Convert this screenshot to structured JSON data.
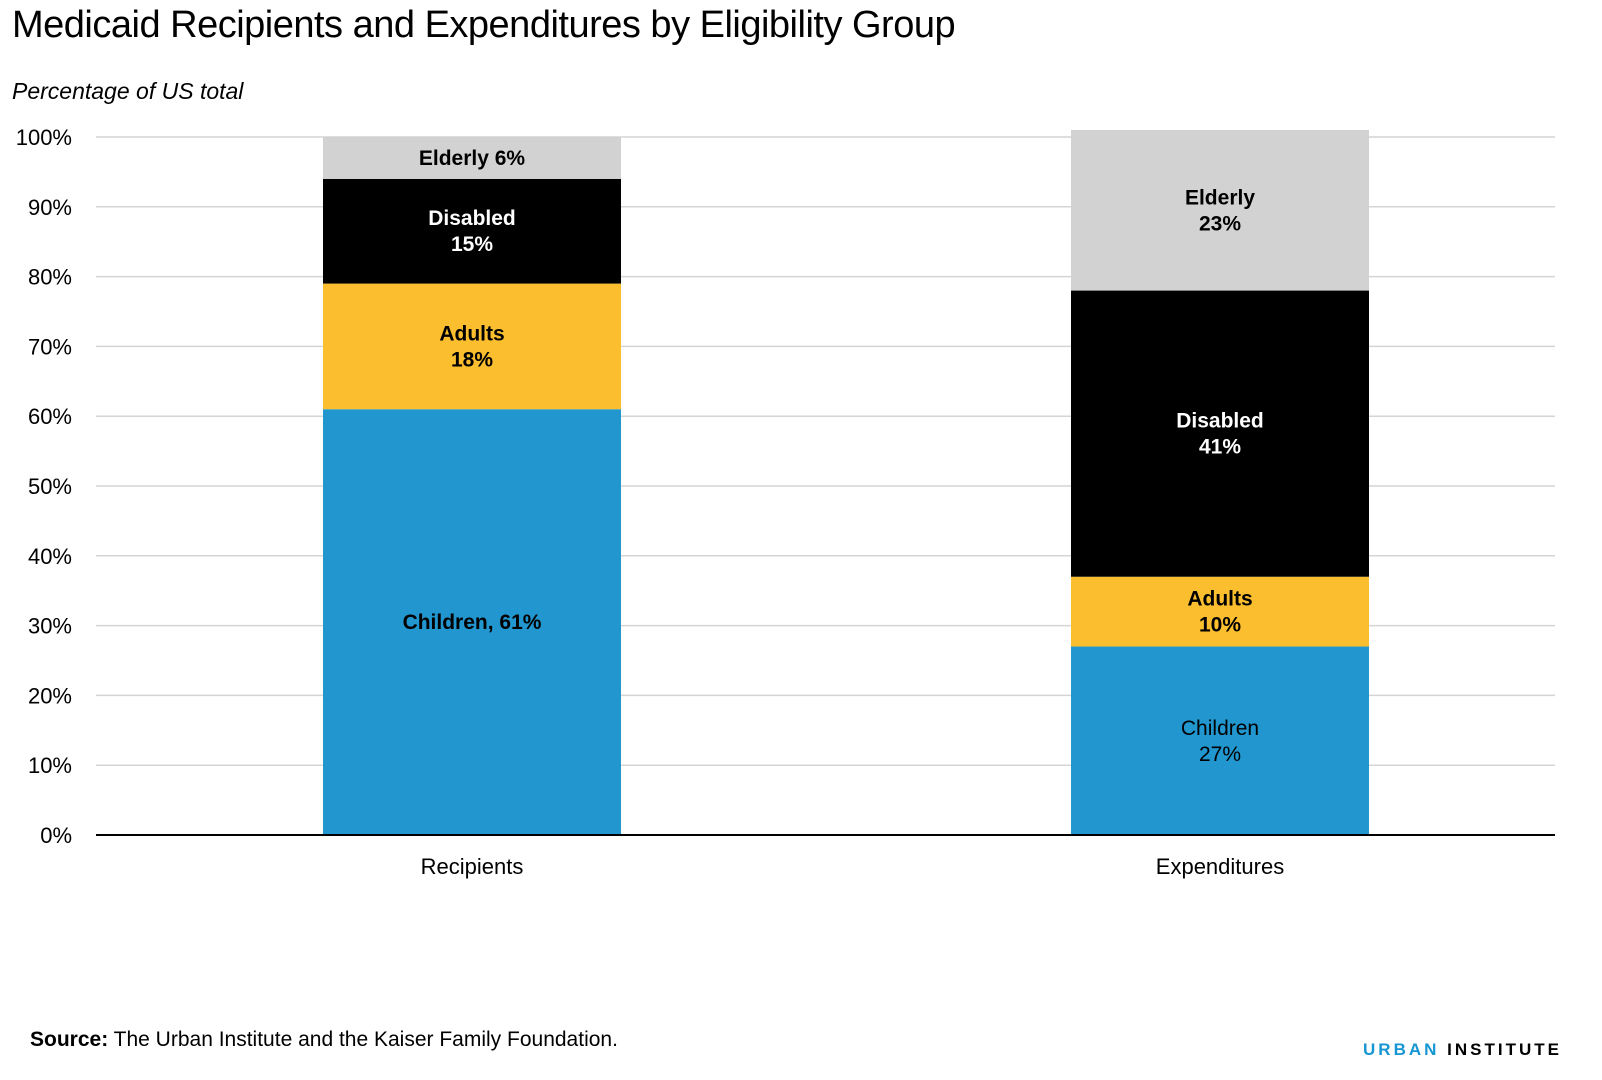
{
  "title": "Medicaid Recipients and Expenditures by Eligibility Group",
  "subtitle": "Percentage of US total",
  "source_label": "Source:",
  "source_text": "The Urban Institute and the Kaiser Family Foundation.",
  "brand": {
    "part1": "URBAN",
    "part2": "INSTITUTE"
  },
  "chart_data": {
    "type": "bar",
    "stacked": true,
    "categories": [
      "Recipients",
      "Expenditures"
    ],
    "ylim": [
      0,
      100
    ],
    "yticks": [
      {
        "value": 0,
        "label": "0%"
      },
      {
        "value": 10,
        "label": "10%"
      },
      {
        "value": 20,
        "label": "20%"
      },
      {
        "value": 30,
        "label": "30%"
      },
      {
        "value": 40,
        "label": "40%"
      },
      {
        "value": 50,
        "label": "50%"
      },
      {
        "value": 60,
        "label": "60%"
      },
      {
        "value": 70,
        "label": "70%"
      },
      {
        "value": 80,
        "label": "80%"
      },
      {
        "value": 90,
        "label": "90%"
      },
      {
        "value": 100,
        "label": "100%"
      }
    ],
    "grid": true,
    "series": [
      {
        "name": "Children",
        "color": "#2196cf",
        "values": [
          61,
          27
        ],
        "labels": [
          [
            "Children, 61%"
          ],
          [
            "Children",
            "27%"
          ]
        ],
        "label_color": "#000000",
        "label_bold": [
          true,
          false
        ]
      },
      {
        "name": "Adults",
        "color": "#fabe2f",
        "values": [
          18,
          10
        ],
        "labels": [
          [
            "Adults",
            "18%"
          ],
          [
            "Adults",
            "10%"
          ]
        ],
        "label_color": "#000000",
        "label_bold": [
          true,
          true
        ]
      },
      {
        "name": "Disabled",
        "color": "#000000",
        "values": [
          15,
          41
        ],
        "labels": [
          [
            "Disabled",
            "15%"
          ],
          [
            "Disabled",
            "41%"
          ]
        ],
        "label_color": "#ffffff",
        "label_bold": [
          true,
          true
        ]
      },
      {
        "name": "Elderly",
        "color": "#d2d2d2",
        "values": [
          6,
          23
        ],
        "labels": [
          [
            "Elderly  6%"
          ],
          [
            "Elderly",
            "23%"
          ]
        ],
        "label_color": "#000000",
        "label_bold": [
          true,
          true
        ]
      }
    ]
  }
}
